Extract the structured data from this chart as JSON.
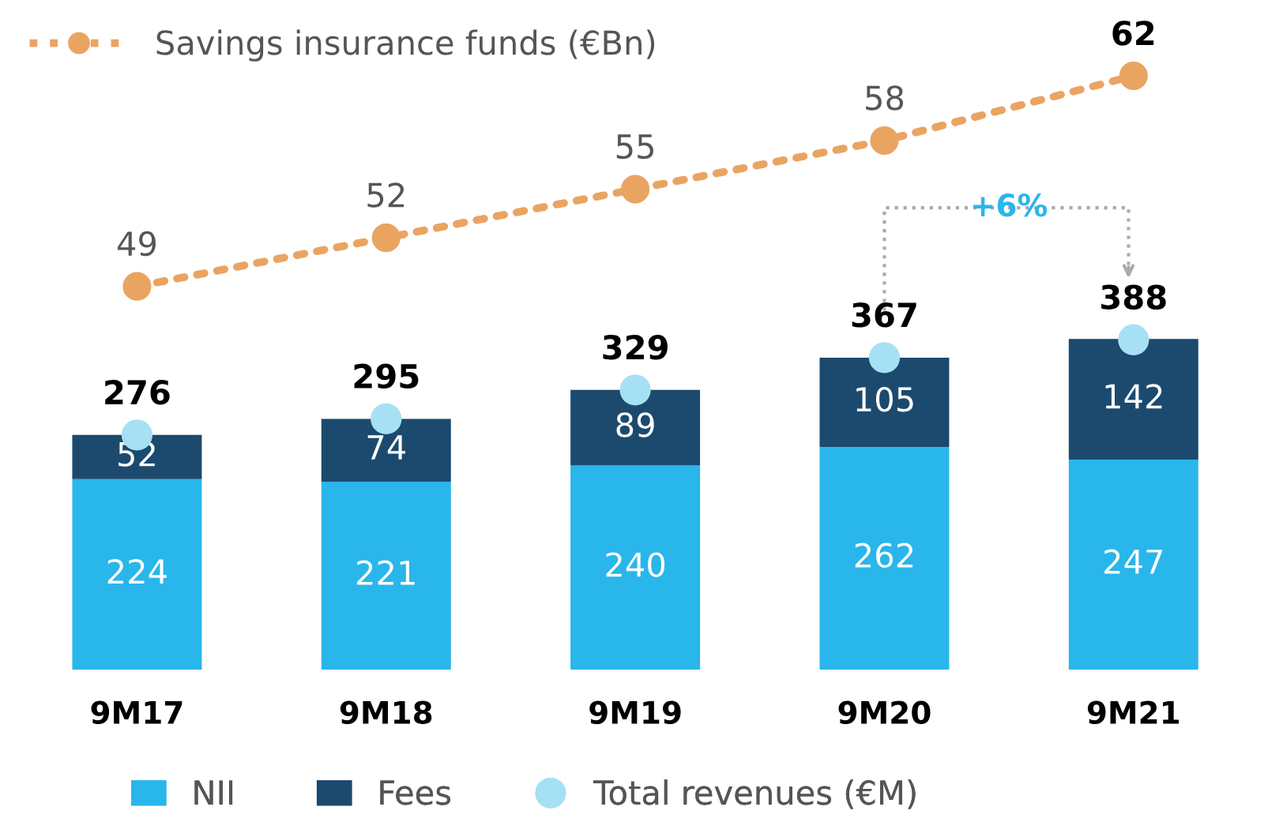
{
  "chart_data": {
    "type": "bar",
    "stacked": true,
    "categories": [
      "9M17",
      "9M18",
      "9M19",
      "9M20",
      "9M21"
    ],
    "series": [
      {
        "name": "NII",
        "color": "#29b6ea",
        "values": [
          224,
          221,
          240,
          262,
          247
        ]
      },
      {
        "name": "Fees",
        "color": "#1c4a6e",
        "values": [
          52,
          74,
          89,
          105,
          142
        ]
      },
      {
        "name": "Total revenues (€M)",
        "type": "scatter",
        "color": "#a6e0f5",
        "values": [
          276,
          295,
          329,
          367,
          388
        ]
      },
      {
        "name": "Savings insurance funds (€Bn)",
        "type": "line",
        "axis": "y2",
        "color": "#eaa462",
        "marker": "circle",
        "line_style": "dotted",
        "values": [
          49,
          52,
          55,
          58,
          62
        ]
      }
    ],
    "data_labels": true,
    "tick_labels": "x",
    "grid": false,
    "legend": "bottom",
    "annotations": [
      "+6%"
    ]
  }
}
